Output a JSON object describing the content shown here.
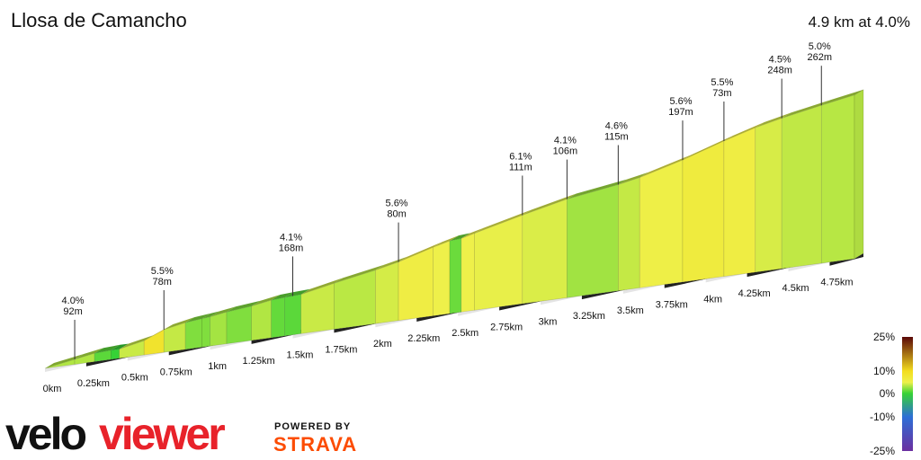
{
  "chart_data": {
    "type": "profile",
    "title": "Llosa de Camancho",
    "subtitle": "4.9 km at 4.0%",
    "xlim": [
      0,
      4.9
    ],
    "xticks": [
      {
        "value": 0,
        "label": "0km"
      },
      {
        "value": 0.25,
        "label": "0.25km"
      },
      {
        "value": 0.5,
        "label": "0.5km"
      },
      {
        "value": 0.75,
        "label": "0.75km"
      },
      {
        "value": 1,
        "label": "1km"
      },
      {
        "value": 1.25,
        "label": "1.25km"
      },
      {
        "value": 1.5,
        "label": "1.5km"
      },
      {
        "value": 1.75,
        "label": "1.75km"
      },
      {
        "value": 2,
        "label": "2km"
      },
      {
        "value": 2.25,
        "label": "2.25km"
      },
      {
        "value": 2.5,
        "label": "2.5km"
      },
      {
        "value": 2.75,
        "label": "2.75km"
      },
      {
        "value": 3,
        "label": "3km"
      },
      {
        "value": 3.25,
        "label": "3.25km"
      },
      {
        "value": 3.5,
        "label": "3.5km"
      },
      {
        "value": 3.75,
        "label": "3.75km"
      },
      {
        "value": 4,
        "label": "4km"
      },
      {
        "value": 4.25,
        "label": "4.25km"
      },
      {
        "value": 4.5,
        "label": "4.5km"
      },
      {
        "value": 4.75,
        "label": "4.75km"
      }
    ],
    "profile": {
      "x": [
        0,
        0.18,
        0.3,
        0.4,
        0.45,
        0.6,
        0.72,
        0.85,
        0.95,
        1.0,
        1.1,
        1.25,
        1.37,
        1.45,
        1.55,
        1.75,
        2.0,
        2.14,
        2.35,
        2.45,
        2.52,
        2.6,
        2.89,
        3.16,
        3.47,
        3.6,
        3.86,
        4.11,
        4.3,
        4.46,
        4.7,
        4.9
      ],
      "values": [
        0,
        6,
        10,
        11,
        11,
        17,
        27,
        32,
        34,
        35,
        38,
        41,
        45,
        46,
        47,
        55,
        64,
        70,
        82,
        87,
        88,
        92,
        106,
        118,
        127,
        132,
        146,
        162,
        173,
        180,
        189,
        196
      ]
    },
    "markers": [
      {
        "x": 0.18,
        "grade": 4.0,
        "grade_label": "4.0%",
        "length": 92,
        "length_label": "92m"
      },
      {
        "x": 0.72,
        "grade": 5.5,
        "grade_label": "5.5%",
        "length": 78,
        "length_label": "78m"
      },
      {
        "x": 1.5,
        "grade": 4.1,
        "grade_label": "4.1%",
        "length": 168,
        "length_label": "168m"
      },
      {
        "x": 2.14,
        "grade": 5.6,
        "grade_label": "5.6%",
        "length": 80,
        "length_label": "80m"
      },
      {
        "x": 2.89,
        "grade": 6.1,
        "grade_label": "6.1%",
        "length": 111,
        "length_label": "111m"
      },
      {
        "x": 3.16,
        "grade": 4.1,
        "grade_label": "4.1%",
        "length": 106,
        "length_label": "106m"
      },
      {
        "x": 3.47,
        "grade": 4.6,
        "grade_label": "4.6%",
        "length": 115,
        "length_label": "115m"
      },
      {
        "x": 3.86,
        "grade": 5.6,
        "grade_label": "5.6%",
        "length": 197,
        "length_label": "197m"
      },
      {
        "x": 4.11,
        "grade": 5.5,
        "grade_label": "5.5%",
        "length": 73,
        "length_label": "73m"
      },
      {
        "x": 4.46,
        "grade": 4.5,
        "grade_label": "4.5%",
        "length": 248,
        "length_label": "248m"
      },
      {
        "x": 4.7,
        "grade": 5.0,
        "grade_label": "5.0%",
        "length": 262,
        "length_label": "262m"
      }
    ],
    "color_stops": [
      {
        "value": -25,
        "color": "#6b2fa0"
      },
      {
        "value": -10,
        "color": "#2d6fd6"
      },
      {
        "value": 0,
        "color": "#36d236"
      },
      {
        "value": 5,
        "color": "#eef04a"
      },
      {
        "value": 10,
        "color": "#f3dd1e"
      },
      {
        "value": 25,
        "color": "#5a0808"
      }
    ],
    "legend_ticks": [
      {
        "value": 25,
        "label": "25%"
      },
      {
        "value": 10,
        "label": "10%"
      },
      {
        "value": 0,
        "label": "0%"
      },
      {
        "value": -10,
        "label": "-10%"
      },
      {
        "value": -25,
        "label": "-25%"
      }
    ],
    "logo": {
      "velo": "velo",
      "viewer": "viewer",
      "powered": "POWERED BY",
      "strava": "STRAVA"
    }
  }
}
